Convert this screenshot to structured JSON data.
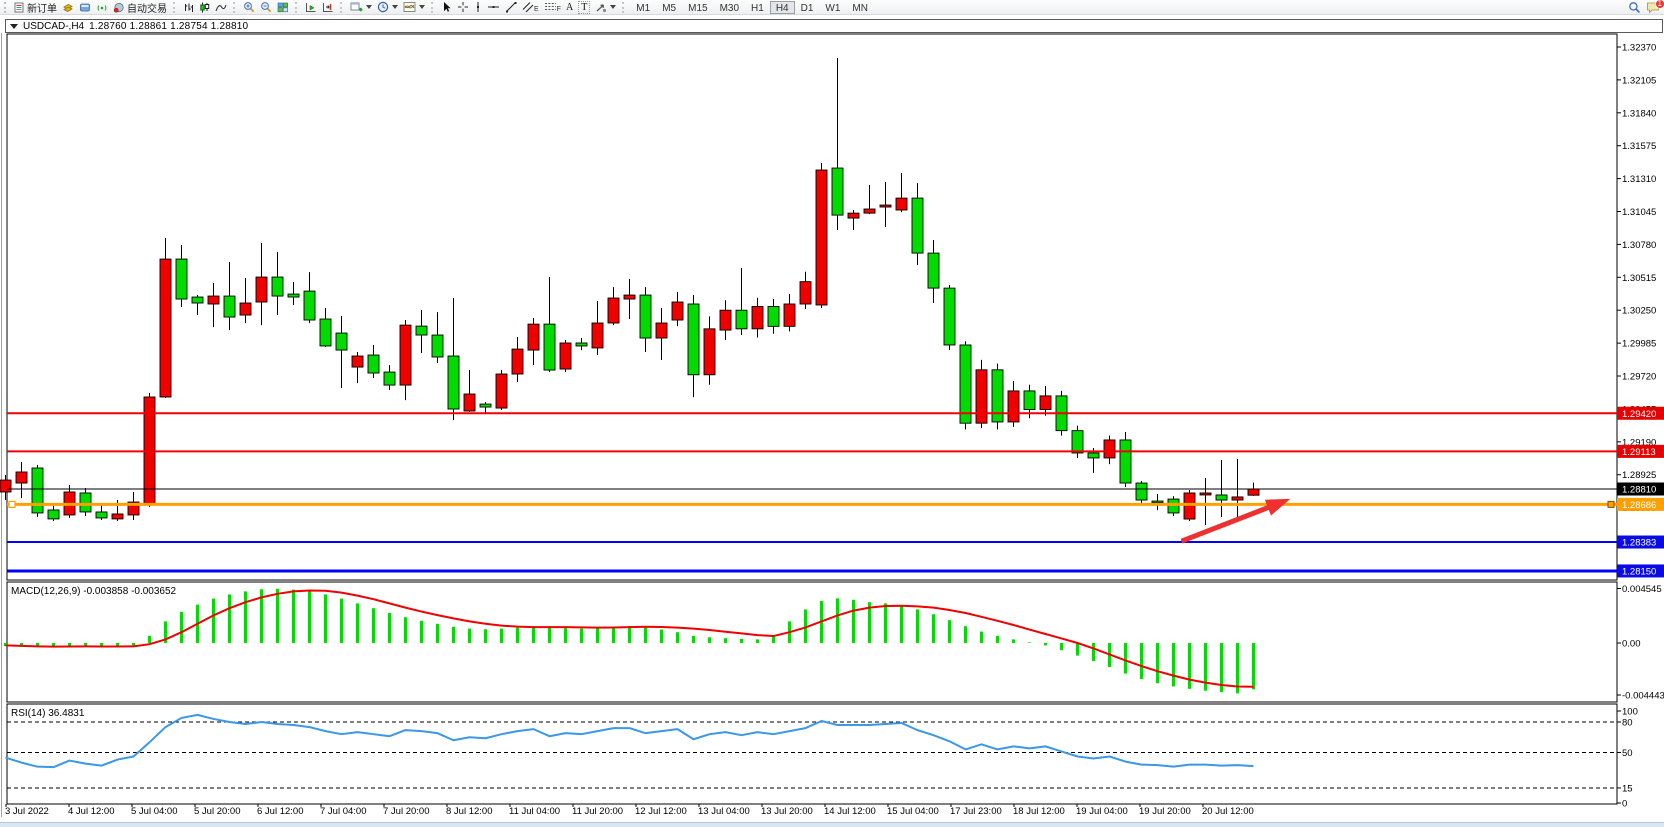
{
  "toolbar": {
    "new_order_label": "新订单",
    "autotrading_label": "自动交易",
    "icon_glyphs": {
      "channel": "E",
      "fibo": "F",
      "text": "A",
      "label": "T"
    },
    "timeframes": [
      "M1",
      "M5",
      "M15",
      "M30",
      "H1",
      "H4",
      "D1",
      "W1",
      "MN"
    ],
    "active_timeframe": "H4",
    "notification_count": "1"
  },
  "chart_window": {
    "symbol_title": "USDCAD-,H4",
    "ohlc": "1.28760 1.28861 1.28754 1.28810"
  },
  "indicator_labels": {
    "macd": "MACD(12,26,9) -0.003858 -0.003652",
    "rsi": "RSI(14) 36.4831"
  },
  "price_axis": {
    "ticks": [
      "1.32370",
      "1.32105",
      "1.31840",
      "1.31575",
      "1.31310",
      "1.31045",
      "1.30780",
      "1.30515",
      "1.30250",
      "1.29985",
      "1.29720",
      "1.29455",
      "1.29190",
      "1.28925",
      "1.28660",
      "1.28395",
      "1.28130"
    ],
    "badges": [
      {
        "value": "1.29420",
        "price": 1.2942,
        "color": "#e60000"
      },
      {
        "value": "1.29113",
        "price": 1.29113,
        "color": "#e60000"
      },
      {
        "value": "1.28810",
        "price": 1.2881,
        "color": "#000000"
      },
      {
        "value": "1.28686",
        "price": 1.28686,
        "color": "#ffa000"
      },
      {
        "value": "1.28383",
        "price": 1.28383,
        "color": "#0a0ae6"
      },
      {
        "value": "1.28150",
        "price": 1.2815,
        "color": "#0a0ae6"
      }
    ]
  },
  "macd_axis": [
    "0.004545",
    "0.00",
    "-0.004443"
  ],
  "rsi_axis": [
    {
      "label": "100",
      "value": 100
    },
    {
      "label": "80",
      "value": 80
    },
    {
      "label": "50",
      "value": 50
    },
    {
      "label": "15",
      "value": 15
    },
    {
      "label": "0",
      "value": 0
    }
  ],
  "time_axis": [
    "3 Jul 2022",
    "4 Jul 12:00",
    "5 Jul 04:00",
    "5 Jul 20:00",
    "6 Jul 12:00",
    "7 Jul 04:00",
    "7 Jul 20:00",
    "8 Jul 12:00",
    "11 Jul 04:00",
    "11 Jul 20:00",
    "12 Jul 12:00",
    "13 Jul 04:00",
    "13 Jul 20:00",
    "14 Jul 12:00",
    "15 Jul 04:00",
    "17 Jul 23:00",
    "18 Jul 12:00",
    "19 Jul 04:00",
    "19 Jul 20:00",
    "20 Jul 12:00"
  ],
  "chart_data": [
    {
      "type": "candlestick",
      "title": "USDCAD-,H4",
      "bull_color": "#f20000",
      "bear_color": "#00dc00",
      "ylim": [
        1.2796,
        1.3247
      ],
      "ohlc_current": {
        "open": 1.2876,
        "high": 1.28861,
        "low": 1.28754,
        "close": 1.2881
      },
      "candles": [
        [
          1.28786,
          1.28923,
          1.28721,
          1.28882
        ],
        [
          1.28858,
          1.29027,
          1.28737,
          1.28947
        ],
        [
          1.28979,
          1.29003,
          1.28585,
          1.28617
        ],
        [
          1.28641,
          1.28681,
          1.28552,
          1.28569
        ],
        [
          1.28601,
          1.28842,
          1.28577,
          1.28786
        ],
        [
          1.28778,
          1.28818,
          1.28593,
          1.28625
        ],
        [
          1.28625,
          1.28681,
          1.2856,
          1.28577
        ],
        [
          1.28569,
          1.28721,
          1.28552,
          1.28609
        ],
        [
          1.28601,
          1.28786,
          1.2856,
          1.28705
        ],
        [
          1.28681,
          1.29583,
          1.28665,
          1.29551
        ],
        [
          1.29551,
          1.30831,
          1.29543,
          1.30662
        ],
        [
          1.30662,
          1.30775,
          1.30276,
          1.3034
        ],
        [
          1.30356,
          1.30372,
          1.30211,
          1.30308
        ],
        [
          1.303,
          1.30469,
          1.30114,
          1.30364
        ],
        [
          1.30364,
          1.30638,
          1.3009,
          1.30195
        ],
        [
          1.30211,
          1.30509,
          1.30146,
          1.30308
        ],
        [
          1.30316,
          1.30791,
          1.3013,
          1.30517
        ],
        [
          1.30517,
          1.30718,
          1.30211,
          1.30364
        ],
        [
          1.3038,
          1.30477,
          1.30292,
          1.30356
        ],
        [
          1.30404,
          1.30557,
          1.30146,
          1.30171
        ],
        [
          1.30179,
          1.30268,
          1.29954,
          1.29962
        ],
        [
          1.30066,
          1.30203,
          1.29623,
          1.29929
        ],
        [
          1.29792,
          1.29913,
          1.29663,
          1.29881
        ],
        [
          1.29889,
          1.2997,
          1.29704,
          1.29744
        ],
        [
          1.29752,
          1.29808,
          1.29607,
          1.29647
        ],
        [
          1.29647,
          1.30171,
          1.29526,
          1.3013
        ],
        [
          1.30122,
          1.30251,
          1.29905,
          1.3005
        ],
        [
          1.3005,
          1.30235,
          1.29825,
          1.29873
        ],
        [
          1.29881,
          1.30348,
          1.29365,
          1.29454
        ],
        [
          1.29438,
          1.29768,
          1.2943,
          1.29575
        ],
        [
          1.29494,
          1.2951,
          1.29421,
          1.2947
        ],
        [
          1.29462,
          1.29768,
          1.29446,
          1.29736
        ],
        [
          1.29736,
          1.30034,
          1.29671,
          1.29937
        ],
        [
          1.29929,
          1.30187,
          1.29809,
          1.30138
        ],
        [
          1.30138,
          1.30517,
          1.29752,
          1.29768
        ],
        [
          1.29776,
          1.3001,
          1.29752,
          1.29986
        ],
        [
          1.29986,
          1.30026,
          1.29929,
          1.29962
        ],
        [
          1.29946,
          1.30324,
          1.29889,
          1.30147
        ],
        [
          1.30147,
          1.30436,
          1.3013,
          1.30348
        ],
        [
          1.3034,
          1.30501,
          1.30179,
          1.30372
        ],
        [
          1.30372,
          1.30436,
          1.29913,
          1.30026
        ],
        [
          1.30026,
          1.30268,
          1.29849,
          1.30147
        ],
        [
          1.30171,
          1.30396,
          1.30122,
          1.30316
        ],
        [
          1.303,
          1.30372,
          1.2955,
          1.2973
        ],
        [
          1.2973,
          1.302,
          1.2965,
          1.301
        ],
        [
          1.3009,
          1.3033,
          1.3001,
          1.3025
        ],
        [
          1.3025,
          1.3059,
          1.3005,
          1.301
        ],
        [
          1.301,
          1.3035,
          1.3003,
          1.3028
        ],
        [
          1.3028,
          1.3034,
          1.3006,
          1.3012
        ],
        [
          1.3012,
          1.3038,
          1.3008,
          1.303
        ],
        [
          1.303,
          1.3056,
          1.3026,
          1.3048
        ],
        [
          1.30292,
          1.31436,
          1.30268,
          1.31379
        ],
        [
          1.31395,
          1.32281,
          1.30896,
          1.31016
        ],
        [
          1.30992,
          1.31057,
          1.30896,
          1.31032
        ],
        [
          1.31032,
          1.31258,
          1.31024,
          1.31065
        ],
        [
          1.31081,
          1.31282,
          1.3092,
          1.31097
        ],
        [
          1.31057,
          1.31355,
          1.3104,
          1.31153
        ],
        [
          1.31153,
          1.31274,
          1.30614,
          1.3071
        ],
        [
          1.3071,
          1.30815,
          1.30308,
          1.30428
        ],
        [
          1.30428,
          1.30453,
          1.2993,
          1.2997
        ],
        [
          1.2997,
          1.3,
          1.2929,
          1.2934
        ],
        [
          1.2934,
          1.2985,
          1.293,
          1.2977
        ],
        [
          1.2977,
          1.2982,
          1.2929,
          1.2935
        ],
        [
          1.2935,
          1.2968,
          1.2931,
          1.296
        ],
        [
          1.296,
          1.2965,
          1.2938,
          1.2945
        ],
        [
          1.2945,
          1.2964,
          1.294,
          1.2956
        ],
        [
          1.2956,
          1.296,
          1.2924,
          1.2928
        ],
        [
          1.2928,
          1.2932,
          1.2906,
          1.291
        ],
        [
          1.291,
          1.2914,
          1.2894,
          1.2906
        ],
        [
          1.2906,
          1.2924,
          1.2901,
          1.29205
        ],
        [
          1.29205,
          1.29269,
          1.28826,
          1.28858
        ],
        [
          1.28858,
          1.28874,
          1.28695,
          1.28721
        ],
        [
          1.28713,
          1.2877,
          1.2864,
          1.287
        ],
        [
          1.28729,
          1.28753,
          1.28593,
          1.28617
        ],
        [
          1.28568,
          1.28802,
          1.28552,
          1.28778
        ],
        [
          1.28762,
          1.28899,
          1.2852,
          1.28778
        ],
        [
          1.28762,
          1.29044,
          1.28584,
          1.28721
        ],
        [
          1.28721,
          1.29052,
          1.28584,
          1.28746
        ],
        [
          1.2876,
          1.28861,
          1.28754,
          1.2881
        ]
      ],
      "hlines": [
        {
          "price": 1.2942,
          "color": "#f00000",
          "width": 2
        },
        {
          "price": 1.29113,
          "color": "#f00000",
          "width": 2
        },
        {
          "price": 1.2881,
          "color": "#000000",
          "width": 1
        },
        {
          "price": 1.28686,
          "color": "#ffa000",
          "width": 3,
          "selected": true
        },
        {
          "price": 1.28383,
          "color": "#0000ff",
          "width": 2
        },
        {
          "price": 1.2815,
          "color": "#0000ff",
          "width": 3
        }
      ],
      "annotation_arrow": {
        "start_index": 73.5,
        "start_price": 1.2839,
        "end_index": 80.3,
        "end_price": 1.2873,
        "color": "#ee3030"
      }
    },
    {
      "type": "bar",
      "name": "MACD(12,26,9)",
      "current_macd": -0.003858,
      "current_signal": -0.003652,
      "bar_color": "#00dc00",
      "signal_color": "#f00000",
      "ylim": [
        -0.004443,
        0.004545
      ],
      "values": [
        -0.00025,
        -0.0003,
        -0.00034,
        -0.0003,
        -0.00026,
        -0.00028,
        -0.0003,
        -0.00028,
        -0.00026,
        0.0006,
        0.0018,
        0.0026,
        0.0032,
        0.0037,
        0.00405,
        0.0043,
        0.00448,
        0.00452,
        0.00445,
        0.0043,
        0.00405,
        0.0037,
        0.0033,
        0.0029,
        0.0025,
        0.00215,
        0.00185,
        0.0016,
        0.00135,
        0.0012,
        0.00115,
        0.0012,
        0.00128,
        0.00138,
        0.00132,
        0.00124,
        0.0012,
        0.00128,
        0.00138,
        0.00142,
        0.0013,
        0.00112,
        0.0009,
        0.0006,
        0.00048,
        0.0004,
        0.00034,
        0.0003,
        0.0006,
        0.0018,
        0.0028,
        0.0035,
        0.00372,
        0.0036,
        0.0034,
        0.0033,
        0.0031,
        0.0028,
        0.0024,
        0.0019,
        0.0014,
        0.00095,
        0.0006,
        0.0003,
        5e-05,
        -0.0002,
        -0.0006,
        -0.00105,
        -0.0015,
        -0.002,
        -0.00255,
        -0.003,
        -0.00335,
        -0.00362,
        -0.00382,
        -0.00398,
        -0.0041,
        -0.0042,
        -0.00386
      ],
      "signal": [
        -0.0002,
        -0.00024,
        -0.00028,
        -0.0003,
        -0.00029,
        -0.00028,
        -0.00029,
        -0.00029,
        -0.00028,
        -0.0001,
        0.0003,
        0.0009,
        0.0016,
        0.0023,
        0.0029,
        0.0034,
        0.0038,
        0.0041,
        0.0043,
        0.00438,
        0.00435,
        0.0042,
        0.00395,
        0.00365,
        0.0033,
        0.00295,
        0.00262,
        0.00232,
        0.00205,
        0.0018,
        0.0016,
        0.00145,
        0.00136,
        0.00132,
        0.00132,
        0.00132,
        0.0013,
        0.00128,
        0.00129,
        0.00132,
        0.00135,
        0.00133,
        0.00128,
        0.0012,
        0.00108,
        0.00094,
        0.0008,
        0.00066,
        0.00058,
        0.0009,
        0.0013,
        0.0018,
        0.0023,
        0.0027,
        0.00295,
        0.00308,
        0.0031,
        0.00305,
        0.00295,
        0.00275,
        0.0025,
        0.00218,
        0.00185,
        0.0015,
        0.00112,
        0.00075,
        0.00038,
        0.0,
        -0.00045,
        -0.00095,
        -0.00145,
        -0.00192,
        -0.00235,
        -0.00272,
        -0.00305,
        -0.0033,
        -0.0035,
        -0.00362,
        -0.00365
      ]
    },
    {
      "type": "line",
      "name": "RSI(14)",
      "current": 36.4831,
      "line_color": "#3b97e8",
      "levels": [
        80,
        50,
        15
      ],
      "ylim": [
        0,
        100
      ],
      "values": [
        45,
        40,
        36,
        35.5,
        42,
        39,
        37,
        43,
        46,
        60,
        75,
        84,
        87,
        83,
        80,
        78,
        80,
        78,
        77,
        75,
        71,
        68,
        70,
        68,
        66,
        72,
        71,
        69,
        62,
        65,
        64,
        68,
        71,
        73,
        66,
        69,
        68,
        71,
        74,
        74,
        69,
        71,
        73,
        63,
        68,
        70,
        67,
        70,
        68,
        71,
        74,
        81,
        77,
        77,
        77,
        78,
        79,
        72,
        67,
        61,
        53,
        58,
        53,
        56,
        54,
        56,
        51,
        46,
        44,
        46,
        41,
        38,
        37.5,
        36,
        38,
        38,
        37,
        37.5,
        36.48
      ]
    }
  ]
}
